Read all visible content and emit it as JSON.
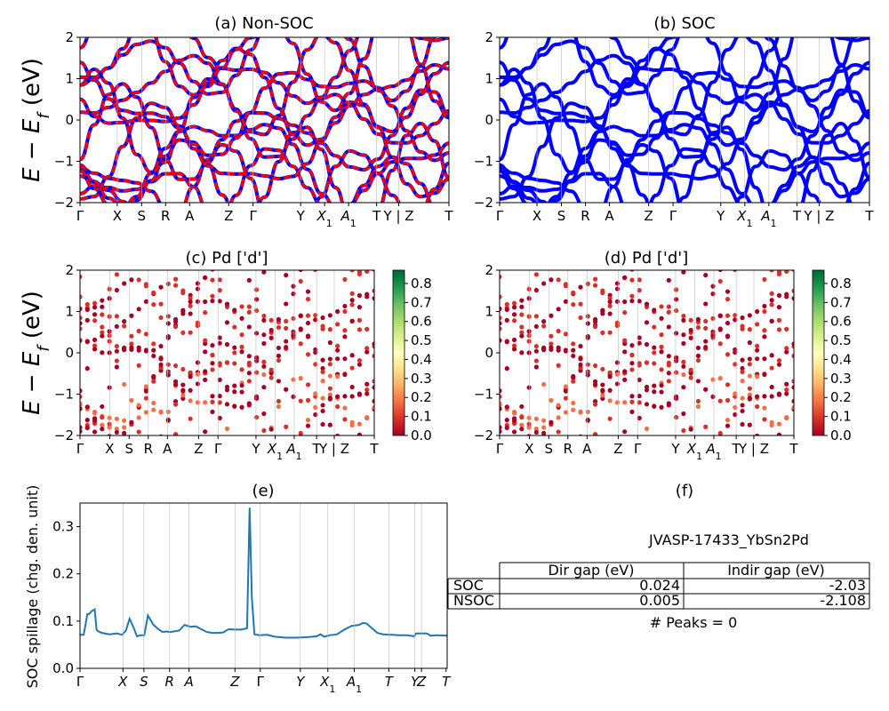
{
  "figure": {
    "ylabel_main": "E − E_f (eV)",
    "ylabel_main_base": "E − E",
    "ylabel_main_sub": "f",
    "ylabel_main_unit": " (eV)"
  },
  "chart_data": [
    {
      "panel": "a",
      "type": "line",
      "title": "(a) Non-SOC",
      "ylim": [
        -2,
        2
      ],
      "yticks": [
        "−2",
        "−1",
        "0",
        "1",
        "2"
      ],
      "kpoint_labels": [
        "Γ",
        "X",
        "S",
        "R",
        "A",
        "Z",
        "Γ",
        "Y",
        "X1",
        "A1",
        "T",
        "Y | Z",
        "T"
      ],
      "series_colors": [
        "#0000ff",
        "#ff0000"
      ],
      "style": "blue solid bands overlaid by red dashed bands",
      "band_count": 14
    },
    {
      "panel": "b",
      "type": "line",
      "title": "(b) SOC",
      "ylim": [
        -2,
        2
      ],
      "yticks": [
        "−2",
        "−1",
        "0",
        "1",
        "2"
      ],
      "kpoint_labels": [
        "Γ",
        "X",
        "S",
        "R",
        "A",
        "Z",
        "Γ",
        "Y",
        "X1",
        "A1",
        "T",
        "Y | Z",
        "T"
      ],
      "series_colors": [
        "#0000ff"
      ],
      "band_count": 14
    },
    {
      "panel": "c",
      "type": "scatter",
      "title": "(c)  Pd ['d']",
      "ylim": [
        -2,
        2
      ],
      "yticks": [
        "−2",
        "−1",
        "0",
        "1",
        "2"
      ],
      "kpoint_labels": [
        "Γ",
        "X",
        "S",
        "R",
        "A",
        "Z",
        "Γ",
        "Y",
        "X1",
        "A1",
        "T",
        "Y | Z",
        "T"
      ],
      "colorbar": {
        "colormap": "RdYlGn",
        "range": [
          0.0,
          0.87
        ],
        "ticks": [
          "0.0",
          "0.1",
          "0.2",
          "0.3",
          "0.4",
          "0.5",
          "0.6",
          "0.7",
          "0.8"
        ]
      }
    },
    {
      "panel": "d",
      "type": "scatter",
      "title": "(d) Pd ['d']",
      "ylim": [
        -2,
        2
      ],
      "yticks": [
        "−2",
        "−1",
        "0",
        "1",
        "2"
      ],
      "kpoint_labels": [
        "Γ",
        "X",
        "S",
        "R",
        "A",
        "Z",
        "Γ",
        "Y",
        "X1",
        "A1",
        "T",
        "Y | Z",
        "T"
      ],
      "colorbar": {
        "colormap": "RdYlGn",
        "range": [
          0.0,
          0.87
        ],
        "ticks": [
          "0.0",
          "0.1",
          "0.2",
          "0.3",
          "0.4",
          "0.5",
          "0.6",
          "0.7",
          "0.8"
        ]
      }
    },
    {
      "panel": "e",
      "type": "line",
      "title": "(e)",
      "ylabel": "SOC spillage (chg. den. unit)",
      "ylim": [
        0.0,
        0.35
      ],
      "yticks": [
        "0.0",
        "0.1",
        "0.2",
        "0.3"
      ],
      "kpoint_labels": [
        "Γ",
        "X",
        "S",
        "R",
        "A",
        "Z",
        "Γ",
        "Y",
        "X1",
        "A1",
        "T",
        "Y",
        "Z",
        "T"
      ],
      "line_color": "#1f77b4",
      "x": [
        0,
        0.01,
        0.02,
        0.025,
        0.03,
        0.04,
        0.045,
        0.05,
        0.06,
        0.08,
        0.1,
        0.115,
        0.125,
        0.135,
        0.145,
        0.155,
        0.165,
        0.175,
        0.185,
        0.2,
        0.215,
        0.225,
        0.235,
        0.245,
        0.255,
        0.27,
        0.285,
        0.3,
        0.315,
        0.33,
        0.345,
        0.36,
        0.375,
        0.39,
        0.405,
        0.42,
        0.44,
        0.455,
        0.462,
        0.468,
        0.475,
        0.482,
        0.49,
        0.51,
        0.53,
        0.56,
        0.59,
        0.62,
        0.645,
        0.655,
        0.665,
        0.68,
        0.7,
        0.72,
        0.74,
        0.76,
        0.77,
        0.78,
        0.795,
        0.81,
        0.825,
        0.85,
        0.87,
        0.89,
        0.91,
        0.915,
        0.93,
        0.945,
        0.955,
        0.97,
        1.0
      ],
      "y": [
        0.071,
        0.071,
        0.115,
        0.115,
        0.12,
        0.125,
        0.082,
        0.078,
        0.075,
        0.072,
        0.074,
        0.071,
        0.08,
        0.105,
        0.088,
        0.068,
        0.07,
        0.07,
        0.112,
        0.092,
        0.082,
        0.077,
        0.078,
        0.077,
        0.078,
        0.08,
        0.092,
        0.088,
        0.089,
        0.083,
        0.077,
        0.075,
        0.075,
        0.076,
        0.083,
        0.082,
        0.082,
        0.085,
        0.34,
        0.15,
        0.072,
        0.071,
        0.07,
        0.071,
        0.067,
        0.065,
        0.065,
        0.066,
        0.068,
        0.072,
        0.067,
        0.07,
        0.072,
        0.082,
        0.09,
        0.092,
        0.096,
        0.095,
        0.085,
        0.075,
        0.072,
        0.071,
        0.07,
        0.07,
        0.068,
        0.074,
        0.074,
        0.074,
        0.069,
        0.07,
        0.069
      ]
    }
  ],
  "panel_f": {
    "title": "(f)",
    "jid": "JVASP-17433_YbSn2Pd",
    "columns": [
      "",
      "Dir gap (eV)",
      "Indir gap (eV)"
    ],
    "rows": [
      {
        "label": "SOC",
        "dir": "0.024",
        "indir": "-2.03"
      },
      {
        "label": "NSOC",
        "dir": "0.005",
        "indir": "-2.108"
      }
    ],
    "peaks": "# Peaks = 0"
  }
}
